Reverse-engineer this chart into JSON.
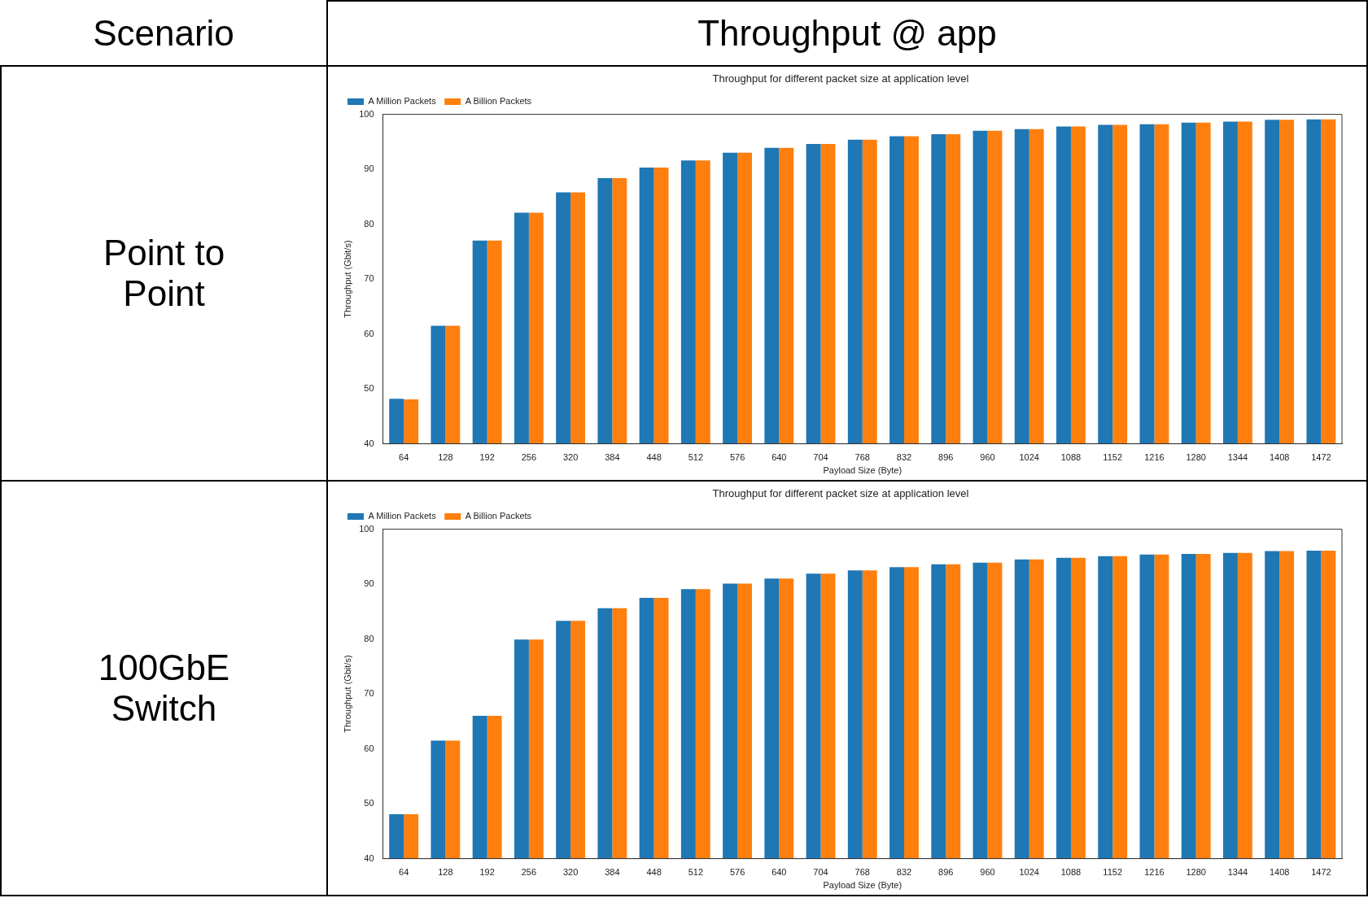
{
  "chart_data": [
    {
      "type": "bar",
      "title": "Throughput for different packet size at application level",
      "xlabel": "Payload Size (Byte)",
      "ylabel": "Throughput (Gbit/s)",
      "annotations": [
        "Scenario",
        "Throughput @ app",
        "Point to Point"
      ],
      "categories": [
        "64",
        "128",
        "192",
        "256",
        "320",
        "384",
        "448",
        "512",
        "576",
        "640",
        "704",
        "768",
        "832",
        "896",
        "960",
        "1024",
        "1088",
        "1152",
        "1216",
        "1280",
        "1344",
        "1408",
        "1472"
      ],
      "series": [
        {
          "name": "A Million Packets",
          "color": "#1f77b4",
          "values": [
            48.2,
            61.5,
            77.0,
            82.1,
            85.8,
            88.4,
            90.3,
            91.6,
            93.0,
            93.9,
            94.6,
            95.4,
            96.0,
            96.4,
            97.0,
            97.3,
            97.8,
            98.1,
            98.2,
            98.5,
            98.7,
            99.0,
            99.1
          ]
        },
        {
          "name": "A Billion Packets",
          "color": "#ff7f0e",
          "values": [
            48.1,
            61.5,
            77.0,
            82.1,
            85.8,
            88.4,
            90.3,
            91.6,
            93.0,
            93.9,
            94.6,
            95.4,
            96.0,
            96.4,
            97.0,
            97.3,
            97.8,
            98.1,
            98.2,
            98.5,
            98.7,
            99.0,
            99.1
          ]
        }
      ],
      "ylim": [
        40,
        100
      ],
      "yticks": [
        40,
        50,
        60,
        70,
        80,
        90,
        100
      ],
      "grid": false,
      "legend": "top left"
    },
    {
      "type": "bar",
      "title": "Throughput for different packet size at application level",
      "xlabel": "Payload Size (Byte)",
      "ylabel": "Throughput (Gbit/s)",
      "annotations": [
        "100GbE Switch"
      ],
      "categories": [
        "64",
        "128",
        "192",
        "256",
        "320",
        "384",
        "448",
        "512",
        "576",
        "640",
        "704",
        "768",
        "832",
        "896",
        "960",
        "1024",
        "1088",
        "1152",
        "1216",
        "1280",
        "1344",
        "1408",
        "1472"
      ],
      "series": [
        {
          "name": "A Million Packets",
          "color": "#1f77b4",
          "values": [
            48.1,
            61.5,
            66.0,
            79.9,
            83.3,
            85.6,
            87.5,
            89.1,
            90.1,
            91.0,
            91.9,
            92.5,
            93.1,
            93.6,
            93.9,
            94.5,
            94.8,
            95.1,
            95.4,
            95.5,
            95.7,
            96.0,
            96.1
          ]
        },
        {
          "name": "A Billion Packets",
          "color": "#ff7f0e",
          "values": [
            48.1,
            61.5,
            66.0,
            79.9,
            83.3,
            85.6,
            87.5,
            89.1,
            90.1,
            91.0,
            91.9,
            92.5,
            93.1,
            93.6,
            93.9,
            94.5,
            94.8,
            95.1,
            95.4,
            95.5,
            95.7,
            96.0,
            96.1
          ]
        }
      ],
      "ylim": [
        40,
        100
      ],
      "yticks": [
        40,
        50,
        60,
        70,
        80,
        90,
        100
      ],
      "grid": false,
      "legend": "top left"
    }
  ]
}
